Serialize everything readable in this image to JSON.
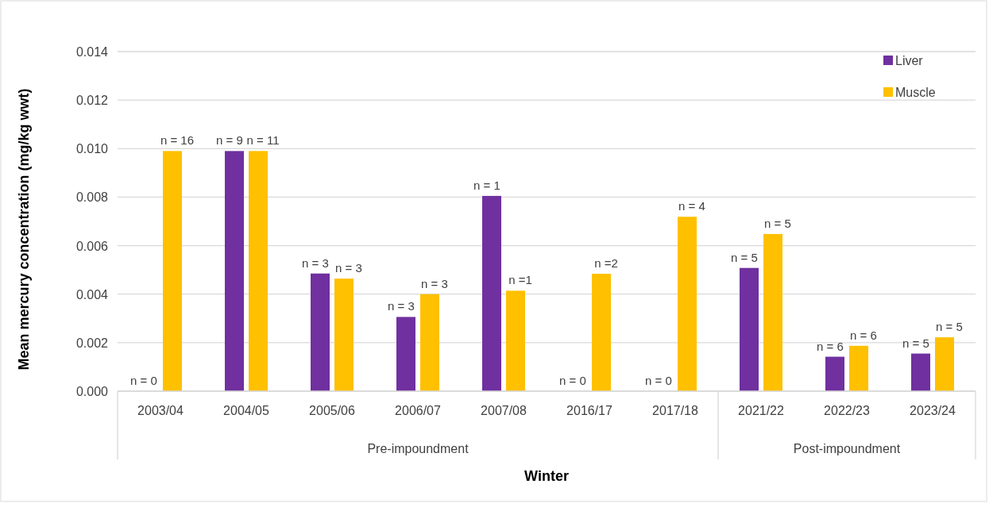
{
  "chart_data": {
    "type": "bar",
    "xlabel": "Winter",
    "ylabel": "Mean mercury concentration (mg/kg wwt)",
    "categories": [
      "2003/04",
      "2004/05",
      "2005/06",
      "2006/07",
      "2007/08",
      "2016/17",
      "2017/18",
      "2021/22",
      "2022/23",
      "2023/24"
    ],
    "series": [
      {
        "name": "Liver",
        "color": "#7030a0",
        "values": [
          null,
          0.0099,
          0.00485,
          0.00306,
          0.00805,
          null,
          null,
          0.00508,
          0.00142,
          0.00155
        ]
      },
      {
        "name": "Muscle",
        "color": "#ffc000",
        "values": [
          0.0099,
          0.0099,
          0.00464,
          0.004,
          0.00414,
          0.00484,
          0.00719,
          0.00648,
          0.00187,
          0.00222
        ]
      }
    ],
    "annotations": [
      {
        "text": "n = 0",
        "x": "2003/04",
        "y": 0
      },
      {
        "text": "n = 16",
        "x": "2003/04",
        "y": 0.0099
      },
      {
        "text": "n = 9",
        "x": "2004/05",
        "y": 0.0099
      },
      {
        "text": "n = 11",
        "x": "2004/05",
        "y": 0.0099
      },
      {
        "text": "n = 3",
        "x": "2005/06",
        "y": 0.00485
      },
      {
        "text": "n = 3",
        "x": "2005/06",
        "y": 0.00464
      },
      {
        "text": "n = 3",
        "x": "2006/07",
        "y": 0.00306
      },
      {
        "text": "n = 3",
        "x": "2006/07",
        "y": 0.004
      },
      {
        "text": "n = 1",
        "x": "2007/08",
        "y": 0.00805
      },
      {
        "text": "n =1",
        "x": "2007/08",
        "y": 0.00414
      },
      {
        "text": "n = 0",
        "x": "2016/17",
        "y": 0
      },
      {
        "text": "n =2",
        "x": "2016/17",
        "y": 0.00484
      },
      {
        "text": "n = 0",
        "x": "2017/18",
        "y": 0
      },
      {
        "text": "n = 4",
        "x": "2017/18",
        "y": 0.00719
      },
      {
        "text": "n = 5",
        "x": "2021/22",
        "y": 0.00508
      },
      {
        "text": "n = 5",
        "x": "2021/22",
        "y": 0.00648
      },
      {
        "text": "n = 6",
        "x": "2022/23",
        "y": 0.00142
      },
      {
        "text": "n = 6",
        "x": "2022/23",
        "y": 0.00187
      },
      {
        "text": "n = 5",
        "x": "2023/24",
        "y": 0.00155
      },
      {
        "text": "n = 5",
        "x": "2023/24",
        "y": 0.00222
      },
      "Pre-impoundment",
      "Post-impoundment"
    ],
    "ylim": [
      0,
      0.014
    ],
    "yticks": [
      {
        "value": 0,
        "label": "0.000"
      },
      {
        "value": 0.002,
        "label": "0.002"
      },
      {
        "value": 0.004,
        "label": "0.004"
      },
      {
        "value": 0.006,
        "label": "0.006"
      },
      {
        "value": 0.008,
        "label": "0.008"
      },
      {
        "value": 0.01,
        "label": "0.010"
      },
      {
        "value": 0.012,
        "label": "0.012"
      },
      {
        "value": 0.014,
        "label": "0.014"
      }
    ],
    "grid": "y",
    "legend": "top right"
  }
}
